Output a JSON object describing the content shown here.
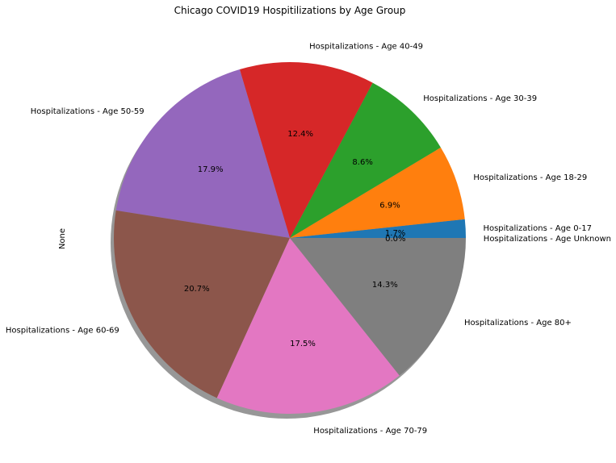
{
  "chart_data": {
    "type": "pie",
    "title": "Chicago COVID19 Hospitilizations by Age Group",
    "ylabel": "None",
    "categories": [
      "Hospitalizations - Age 0-17",
      "Hospitalizations - Age 18-29",
      "Hospitalizations - Age 30-39",
      "Hospitalizations - Age 40-49",
      "Hospitalizations - Age 50-59",
      "Hospitalizations - Age 60-69",
      "Hospitalizations - Age 70-79",
      "Hospitalizations - Age 80+",
      "Hospitalizations - Age Unknown"
    ],
    "values": [
      1.7,
      6.9,
      8.6,
      12.4,
      17.9,
      20.7,
      17.5,
      14.3,
      0.0
    ],
    "pct_labels": [
      "1.7%",
      "6.9%",
      "8.6%",
      "12.4%",
      "17.9%",
      "20.7%",
      "17.5%",
      "14.3%",
      "0.0%"
    ],
    "colors": [
      "#1f77b4",
      "#ff7f0e",
      "#2ca02c",
      "#d62728",
      "#9467bd",
      "#8c564b",
      "#e377c2",
      "#7f7f7f",
      "#bcbd22"
    ],
    "start_angle_deg": 0,
    "direction": "counterclockwise",
    "shadow": true
  }
}
